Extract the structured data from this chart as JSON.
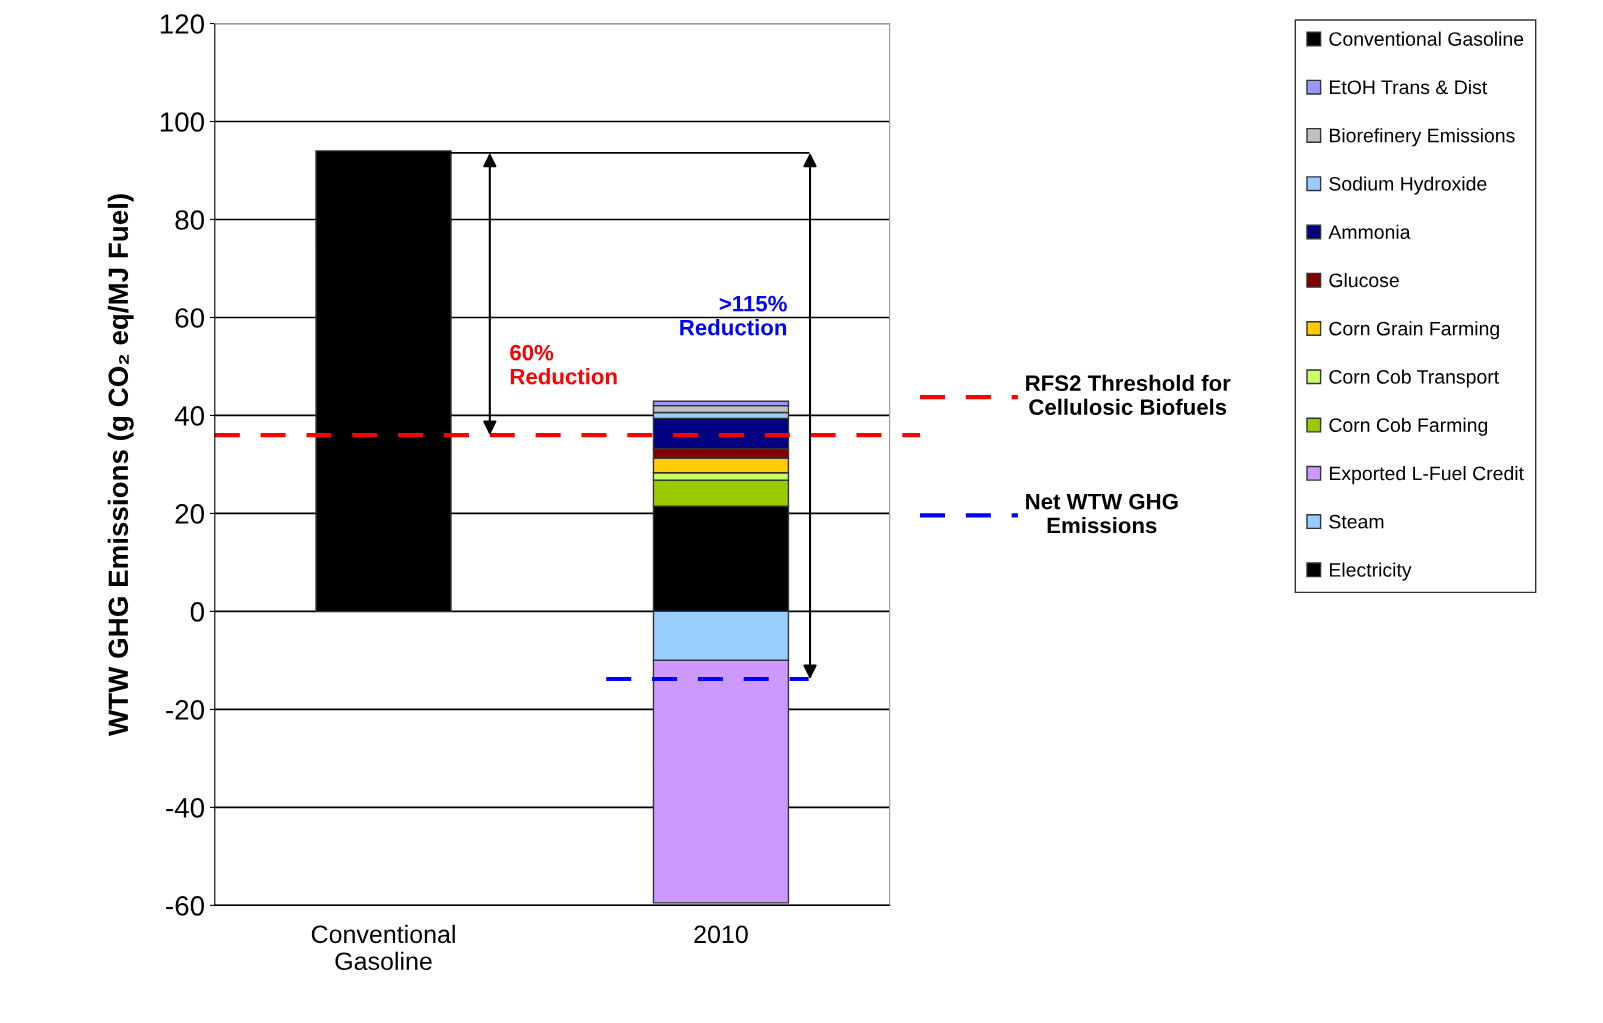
{
  "chart_data": {
    "type": "bar",
    "stacked": true,
    "ylabel": "WTW GHG Emissions (g CO₂ eq/MJ Fuel)",
    "categories": [
      "Conventional\nGasoline",
      "2010"
    ],
    "series": [
      {
        "name": "Electricity",
        "color": "#000000",
        "values": [
          null,
          21.5
        ]
      },
      {
        "name": "Steam",
        "color": "#99ccff",
        "values": [
          null,
          -10
        ]
      },
      {
        "name": "Exported L-Fuel Credit",
        "color": "#cc99ff",
        "values": [
          null,
          -49.5
        ]
      },
      {
        "name": "Corn Cob Farming",
        "color": "#99cc00",
        "values": [
          null,
          5.3
        ]
      },
      {
        "name": "Corn Cob Transport",
        "color": "#ccff66",
        "values": [
          null,
          1.5
        ]
      },
      {
        "name": "Corn Grain Farming",
        "color": "#ffcc00",
        "values": [
          null,
          3.0
        ]
      },
      {
        "name": "Glucose",
        "color": "#800000",
        "values": [
          null,
          1.9
        ]
      },
      {
        "name": "Ammonia",
        "color": "#000080",
        "values": [
          null,
          6.2
        ]
      },
      {
        "name": "Sodium Hydroxide",
        "color": "#99ccff",
        "values": [
          null,
          1.2
        ]
      },
      {
        "name": "Biorefinery Emissions",
        "color": "#c0c0c0",
        "values": [
          null,
          1.4
        ]
      },
      {
        "name": "EtOH Trans & Dist",
        "color": "#9999ff",
        "values": [
          null,
          0.9
        ]
      },
      {
        "name": "Conventional Gasoline",
        "color": "#000000",
        "values": [
          94,
          null
        ]
      }
    ],
    "ylim": [
      -60,
      120
    ],
    "yticks": [
      -60,
      -40,
      -20,
      0,
      20,
      40,
      60,
      80,
      100,
      120
    ],
    "grid": "y",
    "legend": "right",
    "ref_lines": [
      {
        "axis": "y",
        "value": 36,
        "label": "RFS2 Threshold for\nCellulosic Biofuels",
        "color": "#ff0000",
        "line_style": "dashed"
      },
      {
        "axis": "y",
        "value": -13.8,
        "label": "Net WTW GHG\nEmissions",
        "color": "#0000ff",
        "line_style": "dashed"
      },
      {
        "axis": "y",
        "value": 93.6,
        "color": "#000000",
        "line_style": "solid"
      }
    ],
    "annotations": [
      "60%\nReduction",
      ">115%\nReduction"
    ]
  }
}
